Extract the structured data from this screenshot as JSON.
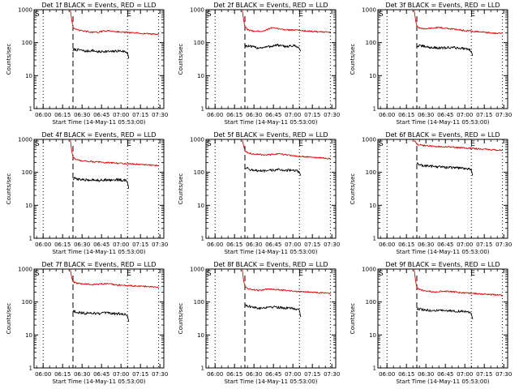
{
  "figure": {
    "xlabel": "Start Time (14-May-11 05:53:00)",
    "ylabel": "Counts/sec",
    "x_tick_labels": [
      "06:00",
      "06:15",
      "06:30",
      "06:45",
      "07:00",
      "07:15",
      "07:30"
    ],
    "y_tick_labels": [
      "1",
      "10",
      "100",
      "1000"
    ],
    "start_marker": "S",
    "end_marker": "E",
    "colors": {
      "events": "#000000",
      "lld": "#e00000",
      "axes": "#000000",
      "background": "#ffffff"
    }
  },
  "chart_data": [
    {
      "type": "line",
      "title": "Det 1f BLACK = Events, RED = LLD",
      "xlabel": "Start Time (14-May-11 05:53:00)",
      "ylabel": "Counts/sec",
      "x_unit": "minutes after 05:53:00",
      "xlim": [
        0,
        100
      ],
      "ylim": [
        1,
        1000
      ],
      "yscale": "log",
      "marker_lines": {
        "dotted": [
          7,
          72,
          96
        ],
        "dashed": [
          30
        ]
      },
      "series": [
        {
          "name": "Events",
          "color": "#000000",
          "x": [
            30,
            31,
            35,
            40,
            45,
            50,
            55,
            60,
            65,
            70,
            72,
            73
          ],
          "y": [
            58,
            62,
            60,
            55,
            58,
            52,
            55,
            53,
            57,
            54,
            50,
            33
          ]
        },
        {
          "name": "LLD",
          "color": "#e00000",
          "x": [
            28,
            29,
            30,
            32,
            35,
            40,
            45,
            50,
            55,
            60,
            65,
            70,
            75,
            80,
            85,
            90,
            96
          ],
          "y": [
            950,
            500,
            300,
            250,
            235,
            220,
            205,
            210,
            230,
            225,
            215,
            205,
            200,
            195,
            190,
            185,
            180
          ]
        }
      ]
    },
    {
      "type": "line",
      "title": "Det 2f BLACK = Events, RED = LLD",
      "xlabel": "Start Time (14-May-11 05:53:00)",
      "ylabel": "Counts/sec",
      "x_unit": "minutes after 05:53:00",
      "xlim": [
        0,
        100
      ],
      "ylim": [
        1,
        1000
      ],
      "yscale": "log",
      "marker_lines": {
        "dotted": [
          7,
          72,
          96
        ],
        "dashed": [
          30
        ]
      },
      "series": [
        {
          "name": "Events",
          "color": "#000000",
          "x": [
            30,
            31,
            35,
            40,
            45,
            50,
            55,
            60,
            65,
            70,
            72,
            73
          ],
          "y": [
            82,
            80,
            75,
            70,
            72,
            78,
            85,
            76,
            80,
            78,
            65,
            55
          ]
        },
        {
          "name": "LLD",
          "color": "#e00000",
          "x": [
            28,
            29,
            30,
            32,
            35,
            40,
            45,
            50,
            55,
            60,
            65,
            70,
            75,
            80,
            85,
            90,
            96
          ],
          "y": [
            950,
            500,
            300,
            250,
            230,
            220,
            230,
            280,
            270,
            250,
            245,
            240,
            230,
            225,
            215,
            210,
            205
          ]
        }
      ]
    },
    {
      "type": "line",
      "title": "Det 3f BLACK = Events, RED = LLD",
      "xlabel": "Start Time (14-May-11 05:53:00)",
      "ylabel": "Counts/sec",
      "x_unit": "minutes after 05:53:00",
      "xlim": [
        0,
        100
      ],
      "ylim": [
        1,
        1000
      ],
      "yscale": "log",
      "marker_lines": {
        "dotted": [
          7,
          72,
          96
        ],
        "dashed": [
          30
        ]
      },
      "series": [
        {
          "name": "Events",
          "color": "#000000",
          "x": [
            30,
            31,
            35,
            40,
            45,
            50,
            55,
            60,
            65,
            70,
            72,
            73
          ],
          "y": [
            75,
            80,
            78,
            72,
            70,
            68,
            72,
            70,
            68,
            65,
            55,
            40
          ]
        },
        {
          "name": "LLD",
          "color": "#e00000",
          "x": [
            28,
            29,
            30,
            32,
            35,
            40,
            45,
            50,
            55,
            60,
            65,
            70,
            75,
            80,
            85,
            90,
            96
          ],
          "y": [
            950,
            500,
            320,
            280,
            260,
            270,
            290,
            280,
            265,
            255,
            240,
            230,
            220,
            210,
            200,
            195,
            190
          ]
        }
      ]
    },
    {
      "type": "line",
      "title": "Det 4f BLACK = Events, RED = LLD",
      "xlabel": "Start Time (14-May-11 05:53:00)",
      "ylabel": "Counts/sec",
      "x_unit": "minutes after 05:53:00",
      "xlim": [
        0,
        100
      ],
      "ylim": [
        1,
        1000
      ],
      "yscale": "log",
      "marker_lines": {
        "dotted": [
          7,
          72,
          96
        ],
        "dashed": [
          30
        ]
      },
      "series": [
        {
          "name": "Events",
          "color": "#000000",
          "x": [
            30,
            31,
            35,
            40,
            45,
            50,
            55,
            60,
            65,
            70,
            72,
            73
          ],
          "y": [
            60,
            65,
            62,
            58,
            60,
            57,
            60,
            58,
            60,
            57,
            50,
            32
          ]
        },
        {
          "name": "LLD",
          "color": "#e00000",
          "x": [
            28,
            29,
            30,
            32,
            35,
            40,
            45,
            50,
            55,
            60,
            65,
            70,
            75,
            80,
            85,
            90,
            96
          ],
          "y": [
            950,
            450,
            290,
            250,
            230,
            220,
            210,
            205,
            200,
            195,
            190,
            185,
            180,
            175,
            170,
            165,
            160
          ]
        }
      ]
    },
    {
      "type": "line",
      "title": "Det 5f BLACK = Events, RED = LLD",
      "xlabel": "Start Time (14-May-11 05:53:00)",
      "ylabel": "Counts/sec",
      "x_unit": "minutes after 05:53:00",
      "xlim": [
        0,
        100
      ],
      "ylim": [
        1,
        1000
      ],
      "yscale": "log",
      "marker_lines": {
        "dotted": [
          7,
          72,
          96
        ],
        "dashed": [
          30
        ]
      },
      "series": [
        {
          "name": "Events",
          "color": "#000000",
          "x": [
            30,
            31,
            35,
            40,
            45,
            50,
            55,
            60,
            65,
            70,
            72,
            73
          ],
          "y": [
            140,
            135,
            120,
            110,
            108,
            115,
            120,
            118,
            115,
            110,
            100,
            80
          ]
        },
        {
          "name": "LLD",
          "color": "#e00000",
          "x": [
            28,
            29,
            30,
            32,
            35,
            40,
            45,
            50,
            55,
            60,
            65,
            70,
            75,
            80,
            85,
            90,
            96
          ],
          "y": [
            950,
            650,
            450,
            400,
            370,
            350,
            340,
            345,
            360,
            350,
            330,
            310,
            300,
            290,
            280,
            270,
            260
          ]
        }
      ]
    },
    {
      "type": "line",
      "title": "Det 6f BLACK = Events, RED = LLD",
      "xlabel": "Start Time (14-May-11 05:53:00)",
      "ylabel": "Counts/sec",
      "x_unit": "minutes after 05:53:00",
      "xlim": [
        0,
        100
      ],
      "ylim": [
        1,
        1000
      ],
      "yscale": "log",
      "marker_lines": {
        "dotted": [
          7,
          72,
          96
        ],
        "dashed": [
          30
        ]
      },
      "series": [
        {
          "name": "Events",
          "color": "#000000",
          "x": [
            30,
            31,
            35,
            40,
            45,
            50,
            55,
            60,
            65,
            70,
            72,
            73
          ],
          "y": [
            190,
            175,
            160,
            155,
            150,
            145,
            140,
            138,
            135,
            130,
            120,
            80
          ]
        },
        {
          "name": "LLD",
          "color": "#e00000",
          "x": [
            28,
            29,
            30,
            32,
            35,
            40,
            45,
            50,
            55,
            60,
            65,
            70,
            75,
            80,
            85,
            90,
            96
          ],
          "y": [
            950,
            850,
            720,
            680,
            650,
            630,
            610,
            600,
            585,
            570,
            555,
            540,
            525,
            510,
            495,
            480,
            460
          ]
        }
      ]
    },
    {
      "type": "line",
      "title": "Det 7f BLACK = Events, RED = LLD",
      "xlabel": "Start Time (14-May-11 05:53:00)",
      "ylabel": "Counts/sec",
      "x_unit": "minutes after 05:53:00",
      "xlim": [
        0,
        100
      ],
      "ylim": [
        1,
        1000
      ],
      "yscale": "log",
      "marker_lines": {
        "dotted": [
          7,
          72,
          96
        ],
        "dashed": [
          30
        ]
      },
      "series": [
        {
          "name": "Events",
          "color": "#000000",
          "x": [
            30,
            31,
            35,
            40,
            45,
            50,
            55,
            60,
            65,
            70,
            72,
            73
          ],
          "y": [
            55,
            52,
            48,
            45,
            47,
            44,
            46,
            45,
            44,
            42,
            38,
            25
          ]
        },
        {
          "name": "LLD",
          "color": "#e00000",
          "x": [
            28,
            29,
            30,
            32,
            35,
            40,
            45,
            50,
            55,
            60,
            65,
            70,
            75,
            80,
            85,
            90,
            96
          ],
          "y": [
            950,
            550,
            420,
            380,
            360,
            350,
            340,
            350,
            355,
            345,
            330,
            320,
            310,
            305,
            300,
            290,
            280
          ]
        }
      ]
    },
    {
      "type": "line",
      "title": "Det 8f BLACK = Events, RED = LLD",
      "xlabel": "Start Time (14-May-11 05:53:00)",
      "ylabel": "Counts/sec",
      "x_unit": "minutes after 05:53:00",
      "xlim": [
        0,
        100
      ],
      "ylim": [
        1,
        1000
      ],
      "yscale": "log",
      "marker_lines": {
        "dotted": [
          7,
          72,
          96
        ],
        "dashed": [
          30
        ]
      },
      "series": [
        {
          "name": "Events",
          "color": "#000000",
          "x": [
            30,
            31,
            35,
            40,
            45,
            50,
            55,
            60,
            65,
            70,
            72,
            73
          ],
          "y": [
            85,
            80,
            70,
            65,
            68,
            72,
            70,
            66,
            64,
            62,
            55,
            35
          ]
        },
        {
          "name": "LLD",
          "color": "#e00000",
          "x": [
            28,
            29,
            30,
            32,
            35,
            40,
            45,
            50,
            55,
            60,
            65,
            70,
            75,
            80,
            85,
            90,
            96
          ],
          "y": [
            950,
            450,
            300,
            260,
            240,
            225,
            235,
            250,
            240,
            230,
            220,
            210,
            205,
            200,
            195,
            190,
            185
          ]
        }
      ]
    },
    {
      "type": "line",
      "title": "Det 9f BLACK = Events, RED = LLD",
      "xlabel": "Start Time (14-May-11 05:53:00)",
      "ylabel": "Counts/sec",
      "x_unit": "minutes after 05:53:00",
      "xlim": [
        0,
        100
      ],
      "ylim": [
        1,
        1000
      ],
      "yscale": "log",
      "marker_lines": {
        "dotted": [
          7,
          72,
          96
        ],
        "dashed": [
          30
        ]
      },
      "series": [
        {
          "name": "Events",
          "color": "#000000",
          "x": [
            30,
            31,
            35,
            40,
            45,
            50,
            55,
            60,
            65,
            70,
            72,
            73
          ],
          "y": [
            60,
            62,
            58,
            55,
            56,
            54,
            55,
            53,
            52,
            50,
            45,
            30
          ]
        },
        {
          "name": "LLD",
          "color": "#e00000",
          "x": [
            28,
            29,
            30,
            32,
            35,
            40,
            45,
            50,
            55,
            60,
            65,
            70,
            75,
            80,
            85,
            90,
            96
          ],
          "y": [
            950,
            450,
            270,
            240,
            220,
            210,
            205,
            215,
            210,
            200,
            190,
            185,
            180,
            175,
            170,
            165,
            160
          ]
        }
      ]
    }
  ]
}
